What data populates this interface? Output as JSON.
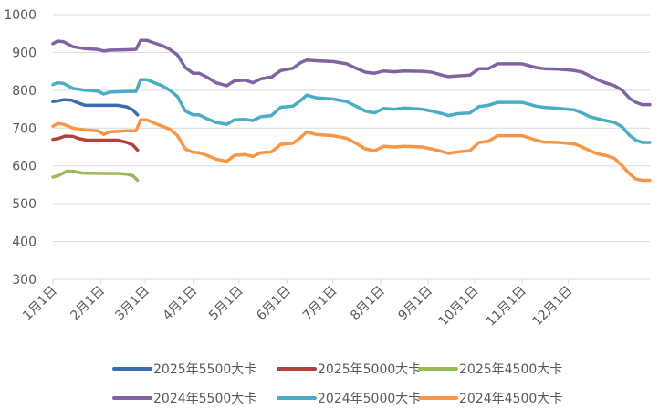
{
  "chart_data": {
    "type": "line",
    "x_axis": {
      "type": "date",
      "ticks": [
        "1月1日",
        "2月1日",
        "3月1日",
        "4月1日",
        "5月1日",
        "6月1日",
        "7月1日",
        "8月1日",
        "9月1日",
        "10月1日",
        "11月1日",
        "12月1日"
      ],
      "tick_dates": [
        "2024-01-01",
        "2024-02-01",
        "2024-03-01",
        "2024-04-01",
        "2024-05-01",
        "2024-06-01",
        "2024-07-01",
        "2024-08-01",
        "2024-09-01",
        "2024-10-01",
        "2024-11-01",
        "2024-12-01"
      ]
    },
    "y_axis": {
      "range": [
        300,
        1000
      ],
      "ticks": [
        300,
        400,
        500,
        600,
        700,
        800,
        900,
        1000
      ]
    },
    "grid": true,
    "legend_position": "bottom",
    "series": [
      {
        "name": "2025年5500大卡",
        "color": "#3A6CB4",
        "points": [
          [
            "2024-01-01",
            770
          ],
          [
            "2024-01-04",
            772
          ],
          [
            "2024-01-08",
            775
          ],
          [
            "2024-01-13",
            774
          ],
          [
            "2024-01-17",
            767
          ],
          [
            "2024-01-22",
            760
          ],
          [
            "2024-02-05",
            760
          ],
          [
            "2024-02-12",
            760
          ],
          [
            "2024-02-18",
            756
          ],
          [
            "2024-02-22",
            748
          ],
          [
            "2024-02-25",
            735
          ]
        ]
      },
      {
        "name": "2025年5000大卡",
        "color": "#B5413E",
        "points": [
          [
            "2024-01-01",
            670
          ],
          [
            "2024-01-05",
            673
          ],
          [
            "2024-01-09",
            679
          ],
          [
            "2024-01-14",
            678
          ],
          [
            "2024-01-18",
            672
          ],
          [
            "2024-01-23",
            668
          ],
          [
            "2024-02-05",
            668
          ],
          [
            "2024-02-12",
            668
          ],
          [
            "2024-02-18",
            662
          ],
          [
            "2024-02-22",
            655
          ],
          [
            "2024-02-25",
            642
          ]
        ]
      },
      {
        "name": "2025年4500大卡",
        "color": "#9BBB59",
        "points": [
          [
            "2024-01-01",
            570
          ],
          [
            "2024-01-05",
            575
          ],
          [
            "2024-01-10",
            586
          ],
          [
            "2024-01-15",
            585
          ],
          [
            "2024-01-20",
            581
          ],
          [
            "2024-02-05",
            580
          ],
          [
            "2024-02-12",
            580
          ],
          [
            "2024-02-18",
            578
          ],
          [
            "2024-02-22",
            574
          ],
          [
            "2024-02-25",
            562
          ]
        ]
      },
      {
        "name": "2024年5500大卡",
        "color": "#8064A2",
        "points": [
          [
            "2024-01-01",
            923
          ],
          [
            "2024-01-04",
            930
          ],
          [
            "2024-01-08",
            928
          ],
          [
            "2024-01-14",
            915
          ],
          [
            "2024-01-22",
            910
          ],
          [
            "2024-01-30",
            908
          ],
          [
            "2024-02-03",
            904
          ],
          [
            "2024-02-07",
            906
          ],
          [
            "2024-02-18",
            907
          ],
          [
            "2024-02-24",
            908
          ],
          [
            "2024-02-27",
            932
          ],
          [
            "2024-03-02",
            932
          ],
          [
            "2024-03-07",
            925
          ],
          [
            "2024-03-12",
            918
          ],
          [
            "2024-03-17",
            908
          ],
          [
            "2024-03-22",
            893
          ],
          [
            "2024-03-27",
            860
          ],
          [
            "2024-04-01",
            845
          ],
          [
            "2024-04-05",
            845
          ],
          [
            "2024-04-10",
            835
          ],
          [
            "2024-04-16",
            820
          ],
          [
            "2024-04-23",
            812
          ],
          [
            "2024-04-28",
            825
          ],
          [
            "2024-05-05",
            827
          ],
          [
            "2024-05-10",
            820
          ],
          [
            "2024-05-15",
            830
          ],
          [
            "2024-05-22",
            835
          ],
          [
            "2024-05-28",
            852
          ],
          [
            "2024-06-05",
            858
          ],
          [
            "2024-06-10",
            873
          ],
          [
            "2024-06-14",
            880
          ],
          [
            "2024-06-20",
            878
          ],
          [
            "2024-07-01",
            876
          ],
          [
            "2024-07-10",
            870
          ],
          [
            "2024-07-16",
            858
          ],
          [
            "2024-07-22",
            848
          ],
          [
            "2024-07-28",
            845
          ],
          [
            "2024-08-03",
            851
          ],
          [
            "2024-08-10",
            849
          ],
          [
            "2024-08-16",
            851
          ],
          [
            "2024-08-28",
            850
          ],
          [
            "2024-09-03",
            848
          ],
          [
            "2024-09-10",
            840
          ],
          [
            "2024-09-14",
            836
          ],
          [
            "2024-09-20",
            838
          ],
          [
            "2024-09-28",
            840
          ],
          [
            "2024-10-04",
            857
          ],
          [
            "2024-10-10",
            857
          ],
          [
            "2024-10-16",
            870
          ],
          [
            "2024-11-01",
            870
          ],
          [
            "2024-11-10",
            860
          ],
          [
            "2024-11-15",
            857
          ],
          [
            "2024-11-25",
            856
          ],
          [
            "2024-12-05",
            852
          ],
          [
            "2024-12-10",
            848
          ],
          [
            "2024-12-15",
            838
          ],
          [
            "2024-12-20",
            828
          ],
          [
            "2024-12-25",
            820
          ],
          [
            "2024-12-31",
            812
          ],
          [
            "2025-01-05",
            800
          ],
          [
            "2025-01-10",
            778
          ],
          [
            "2025-01-14",
            768
          ],
          [
            "2025-01-18",
            762
          ],
          [
            "2025-01-23",
            762
          ]
        ]
      },
      {
        "name": "2024年5000大卡",
        "color": "#4BACC6",
        "points": [
          [
            "2024-01-01",
            815
          ],
          [
            "2024-01-04",
            820
          ],
          [
            "2024-01-08",
            818
          ],
          [
            "2024-01-14",
            805
          ],
          [
            "2024-01-22",
            800
          ],
          [
            "2024-01-30",
            798
          ],
          [
            "2024-02-03",
            790
          ],
          [
            "2024-02-07",
            795
          ],
          [
            "2024-02-18",
            797
          ],
          [
            "2024-02-24",
            797
          ],
          [
            "2024-02-27",
            828
          ],
          [
            "2024-03-02",
            828
          ],
          [
            "2024-03-07",
            820
          ],
          [
            "2024-03-12",
            812
          ],
          [
            "2024-03-17",
            800
          ],
          [
            "2024-03-22",
            783
          ],
          [
            "2024-03-27",
            745
          ],
          [
            "2024-04-01",
            735
          ],
          [
            "2024-04-05",
            735
          ],
          [
            "2024-04-10",
            725
          ],
          [
            "2024-04-16",
            715
          ],
          [
            "2024-04-23",
            710
          ],
          [
            "2024-04-28",
            722
          ],
          [
            "2024-05-05",
            723
          ],
          [
            "2024-05-10",
            720
          ],
          [
            "2024-05-15",
            730
          ],
          [
            "2024-05-22",
            733
          ],
          [
            "2024-05-28",
            755
          ],
          [
            "2024-06-05",
            758
          ],
          [
            "2024-06-10",
            773
          ],
          [
            "2024-06-14",
            787
          ],
          [
            "2024-06-20",
            780
          ],
          [
            "2024-07-01",
            777
          ],
          [
            "2024-07-10",
            770
          ],
          [
            "2024-07-16",
            758
          ],
          [
            "2024-07-22",
            745
          ],
          [
            "2024-07-28",
            740
          ],
          [
            "2024-08-03",
            752
          ],
          [
            "2024-08-10",
            750
          ],
          [
            "2024-08-16",
            753
          ],
          [
            "2024-08-28",
            750
          ],
          [
            "2024-09-03",
            745
          ],
          [
            "2024-09-10",
            738
          ],
          [
            "2024-09-14",
            733
          ],
          [
            "2024-09-20",
            738
          ],
          [
            "2024-09-28",
            740
          ],
          [
            "2024-10-04",
            757
          ],
          [
            "2024-10-10",
            760
          ],
          [
            "2024-10-16",
            768
          ],
          [
            "2024-11-01",
            768
          ],
          [
            "2024-11-10",
            758
          ],
          [
            "2024-11-15",
            755
          ],
          [
            "2024-11-25",
            752
          ],
          [
            "2024-12-05",
            748
          ],
          [
            "2024-12-10",
            740
          ],
          [
            "2024-12-15",
            730
          ],
          [
            "2024-12-20",
            725
          ],
          [
            "2024-12-25",
            720
          ],
          [
            "2024-12-31",
            715
          ],
          [
            "2025-01-05",
            703
          ],
          [
            "2025-01-10",
            680
          ],
          [
            "2025-01-14",
            668
          ],
          [
            "2025-01-18",
            662
          ],
          [
            "2025-01-23",
            662
          ]
        ]
      },
      {
        "name": "2024年4500大卡",
        "color": "#F79646",
        "points": [
          [
            "2024-01-01",
            705
          ],
          [
            "2024-01-04",
            712
          ],
          [
            "2024-01-08",
            710
          ],
          [
            "2024-01-14",
            700
          ],
          [
            "2024-01-22",
            695
          ],
          [
            "2024-01-30",
            693
          ],
          [
            "2024-02-03",
            683
          ],
          [
            "2024-02-07",
            690
          ],
          [
            "2024-02-18",
            693
          ],
          [
            "2024-02-24",
            693
          ],
          [
            "2024-02-27",
            722
          ],
          [
            "2024-03-02",
            722
          ],
          [
            "2024-03-07",
            713
          ],
          [
            "2024-03-12",
            705
          ],
          [
            "2024-03-17",
            697
          ],
          [
            "2024-03-22",
            680
          ],
          [
            "2024-03-27",
            645
          ],
          [
            "2024-04-01",
            636
          ],
          [
            "2024-04-05",
            635
          ],
          [
            "2024-04-10",
            628
          ],
          [
            "2024-04-16",
            618
          ],
          [
            "2024-04-23",
            612
          ],
          [
            "2024-04-28",
            628
          ],
          [
            "2024-05-05",
            630
          ],
          [
            "2024-05-10",
            625
          ],
          [
            "2024-05-15",
            635
          ],
          [
            "2024-05-22",
            637
          ],
          [
            "2024-05-28",
            657
          ],
          [
            "2024-06-05",
            660
          ],
          [
            "2024-06-10",
            675
          ],
          [
            "2024-06-14",
            690
          ],
          [
            "2024-06-20",
            683
          ],
          [
            "2024-07-01",
            680
          ],
          [
            "2024-07-10",
            673
          ],
          [
            "2024-07-16",
            660
          ],
          [
            "2024-07-22",
            645
          ],
          [
            "2024-07-28",
            640
          ],
          [
            "2024-08-03",
            652
          ],
          [
            "2024-08-10",
            650
          ],
          [
            "2024-08-16",
            652
          ],
          [
            "2024-08-28",
            650
          ],
          [
            "2024-09-03",
            645
          ],
          [
            "2024-09-10",
            638
          ],
          [
            "2024-09-14",
            633
          ],
          [
            "2024-09-20",
            637
          ],
          [
            "2024-09-28",
            640
          ],
          [
            "2024-10-04",
            662
          ],
          [
            "2024-10-10",
            665
          ],
          [
            "2024-10-16",
            680
          ],
          [
            "2024-11-01",
            680
          ],
          [
            "2024-11-10",
            668
          ],
          [
            "2024-11-15",
            663
          ],
          [
            "2024-11-25",
            662
          ],
          [
            "2024-12-05",
            658
          ],
          [
            "2024-12-10",
            650
          ],
          [
            "2024-12-15",
            640
          ],
          [
            "2024-12-20",
            632
          ],
          [
            "2024-12-25",
            628
          ],
          [
            "2024-12-31",
            620
          ],
          [
            "2025-01-05",
            600
          ],
          [
            "2025-01-10",
            578
          ],
          [
            "2025-01-14",
            565
          ],
          [
            "2025-01-18",
            562
          ],
          [
            "2025-01-23",
            562
          ]
        ]
      }
    ]
  }
}
